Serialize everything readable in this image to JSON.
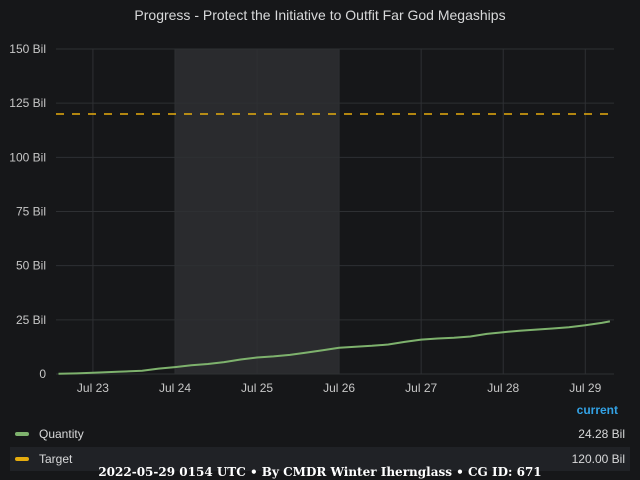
{
  "chart_data": {
    "type": "line",
    "title": "Progress - Protect the Initiative to Outfit Far God Megaships",
    "y_ticks": [
      "0",
      "25 Bil",
      "50 Bil",
      "75 Bil",
      "100 Bil",
      "125 Bil",
      "150 Bil"
    ],
    "ylim": [
      0,
      150
    ],
    "x_ticks": [
      "Jul 23",
      "Jul 24",
      "Jul 25",
      "Jul 26",
      "Jul 27",
      "Jul 28",
      "Jul 29"
    ],
    "xlim_days": [
      22.55,
      29.35
    ],
    "highlight_days": [
      24.0,
      26.0
    ],
    "grid": true,
    "series": [
      {
        "name": "Quantity",
        "color": "#7eb26d",
        "x_days": [
          22.58,
          22.8,
          23.0,
          23.3,
          23.6,
          23.8,
          24.0,
          24.2,
          24.4,
          24.6,
          24.8,
          25.0,
          25.2,
          25.4,
          25.6,
          25.8,
          26.0,
          26.2,
          26.4,
          26.6,
          26.8,
          27.0,
          27.2,
          27.4,
          27.6,
          27.8,
          28.0,
          28.2,
          28.4,
          28.6,
          28.8,
          29.0,
          29.2,
          29.3
        ],
        "values": [
          0.1,
          0.3,
          0.6,
          1.0,
          1.5,
          2.5,
          3.2,
          4.0,
          4.6,
          5.5,
          6.7,
          7.6,
          8.1,
          8.8,
          9.9,
          11.0,
          12.1,
          12.6,
          13.0,
          13.6,
          14.8,
          15.9,
          16.4,
          16.7,
          17.3,
          18.5,
          19.3,
          20.0,
          20.5,
          21.0,
          21.6,
          22.5,
          23.6,
          24.28
        ]
      },
      {
        "name": "Target",
        "color": "#e5ac0e",
        "dashed": true,
        "x_days": [
          22.55,
          29.35
        ],
        "values": [
          120,
          120
        ]
      }
    ]
  },
  "legend": {
    "header": "current",
    "items": [
      {
        "name": "Quantity",
        "value": "24.28 Bil",
        "color": "#7eb26d"
      },
      {
        "name": "Target",
        "value": "120.00 Bil",
        "color": "#e5ac0e"
      }
    ]
  },
  "footer": "2022-05-29 0154 UTC • By CMDR Winter Iherngla̅ss • CG ID: 671"
}
